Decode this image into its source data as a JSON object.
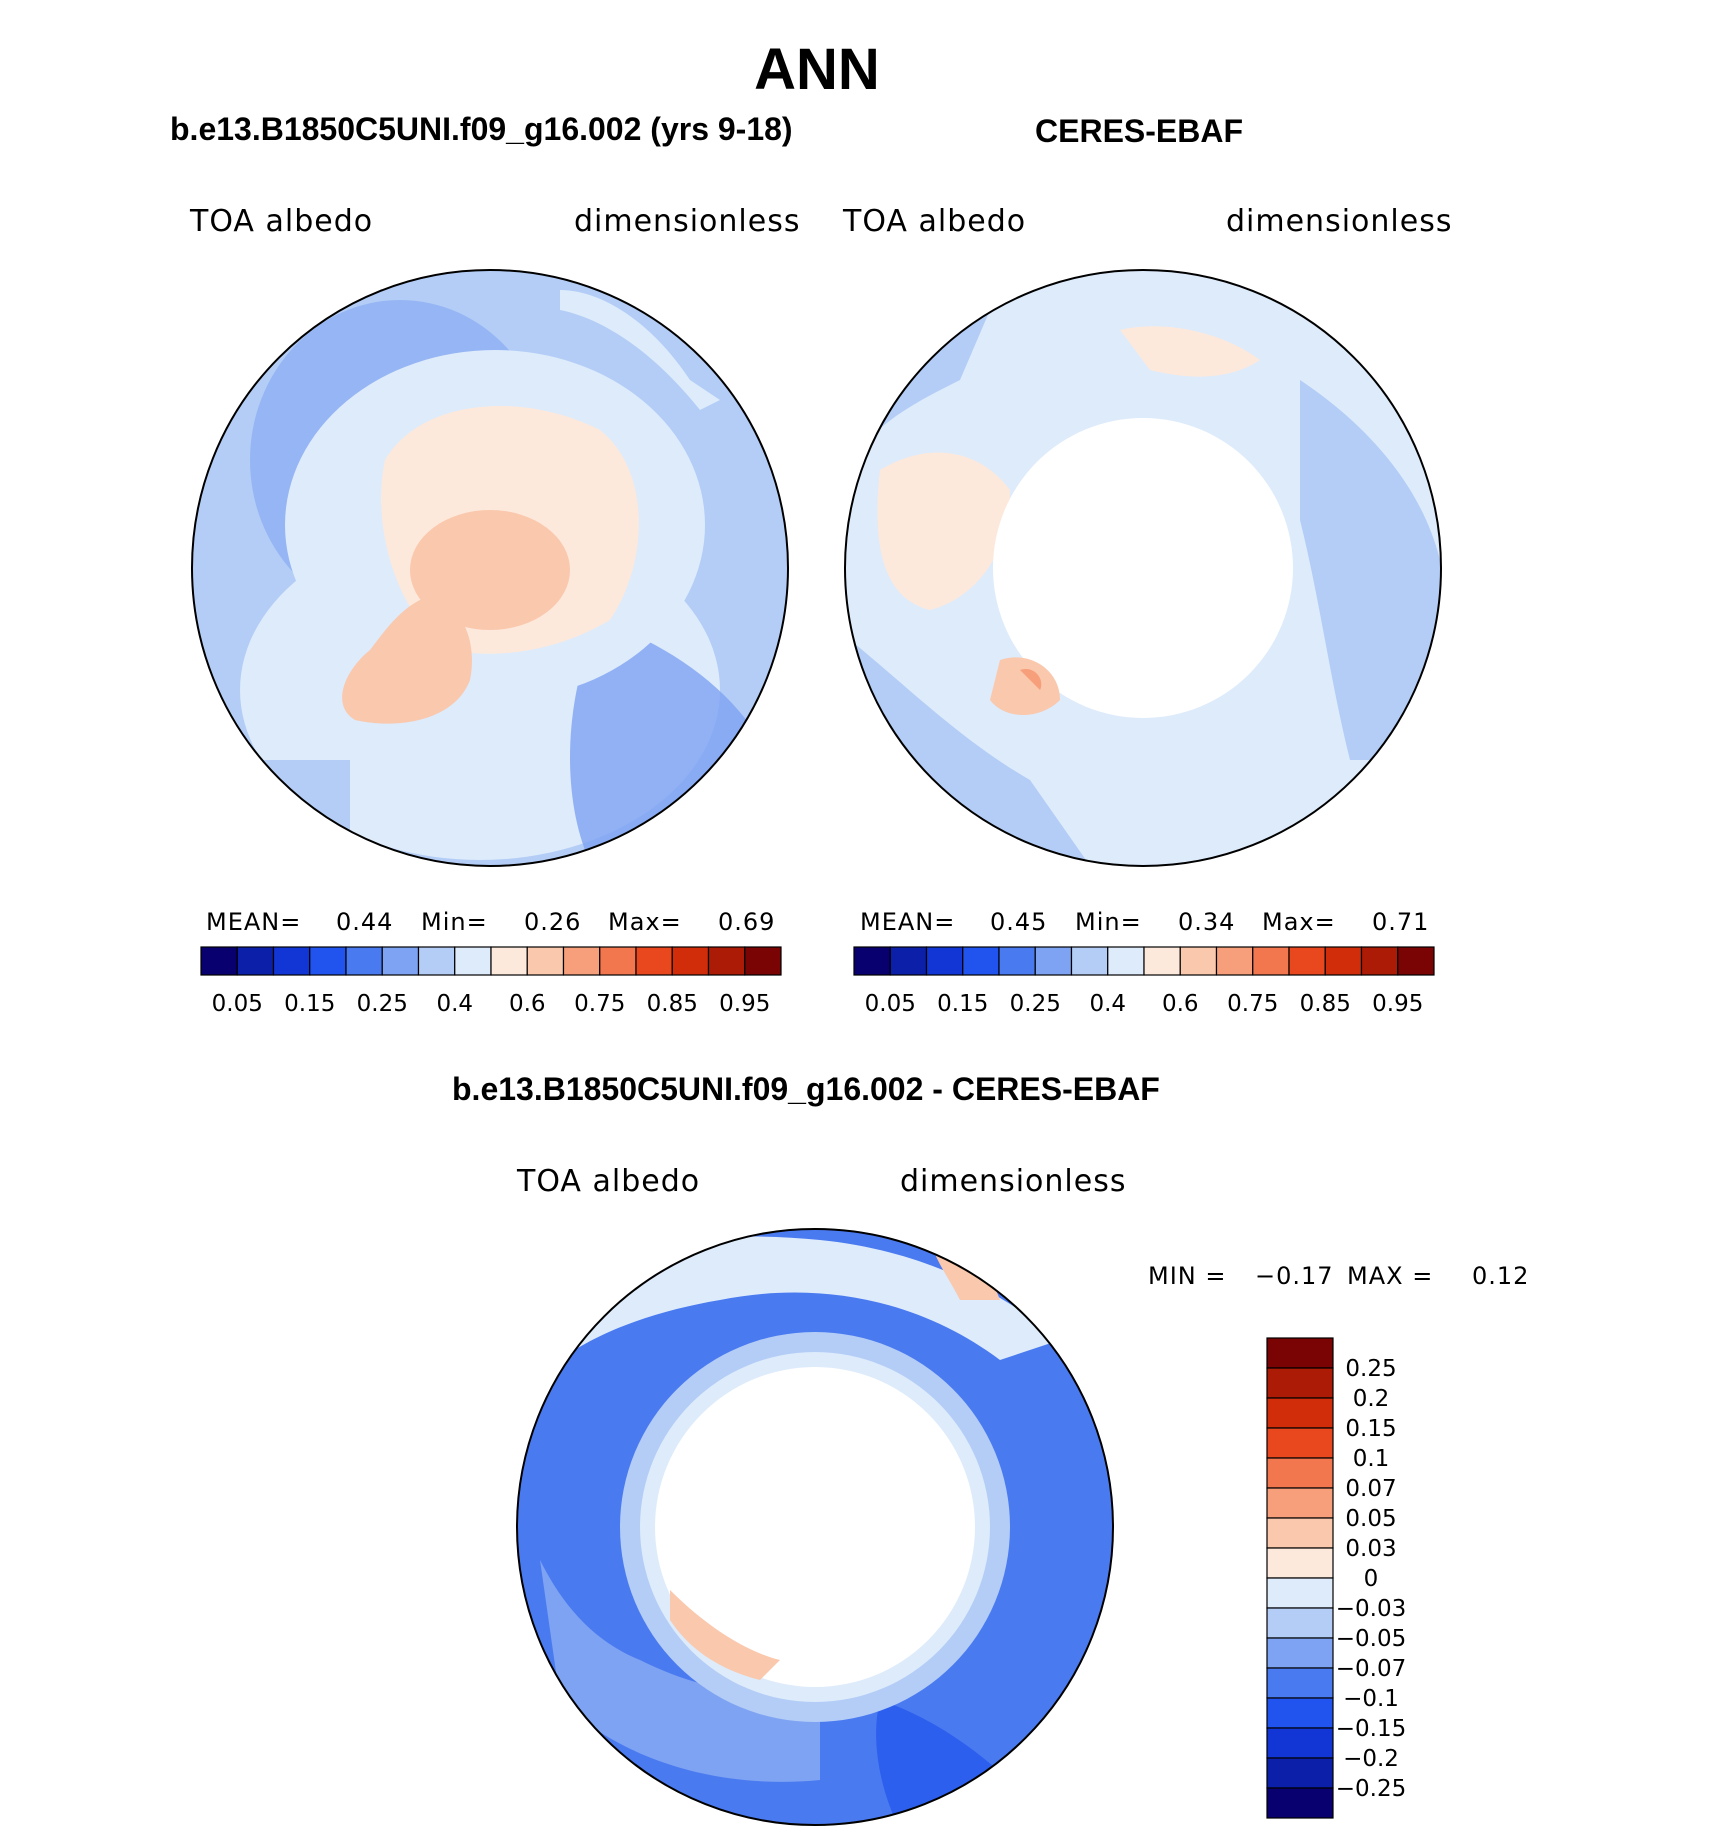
{
  "main_title": "ANN",
  "panels": [
    {
      "title": "b.e13.B1850C5UNI.f09_g16.002 (yrs 9-18)",
      "left_label": "TOA albedo",
      "right_label": "dimensionless",
      "stats": {
        "mean_label": "MEAN=",
        "mean": "0.44",
        "min_label": "Min=",
        "min": "0.26",
        "max_label": "Max=",
        "max": "0.69"
      }
    },
    {
      "title": "CERES-EBAF",
      "left_label": "TOA albedo",
      "right_label": "dimensionless",
      "stats": {
        "mean_label": "MEAN=",
        "mean": "0.45",
        "min_label": "Min=",
        "min": "0.34",
        "max_label": "Max=",
        "max": "0.71"
      }
    }
  ],
  "diff_panel": {
    "title": "b.e13.B1850C5UNI.f09_g16.002 - CERES-EBAF",
    "left_label": "TOA albedo",
    "right_label": "dimensionless",
    "minmax": {
      "min_label": "MIN =",
      "min": "−0.17",
      "max_label": "MAX =",
      "max": "0.12"
    }
  },
  "chart_data": [
    {
      "type": "heatmap",
      "projection": "polar-stereographic-north",
      "title": "b.e13.B1850C5UNI.f09_g16.002 (yrs 9-18)",
      "variable": "TOA albedo",
      "units": "dimensionless",
      "mean": 0.44,
      "min": 0.26,
      "max": 0.69,
      "colorbar": {
        "orientation": "horizontal",
        "tick_labels": [
          "0.05",
          "0.15",
          "0.25",
          "0.4",
          "0.6",
          "0.75",
          "0.85",
          "0.95"
        ],
        "colors": [
          "#08006e",
          "#0b1fa8",
          "#1236d6",
          "#2154ee",
          "#4a7af0",
          "#7ea3f2",
          "#b3cdf6",
          "#ddebfb",
          "#fde9dc",
          "#fac8ad",
          "#f79f7b",
          "#f2764e",
          "#e9481e",
          "#d12d0b",
          "#ab1b06",
          "#7a0303"
        ]
      },
      "regions": {
        "ocean_midlat": "~0.3",
        "arctic_ocean": "~0.5-0.6",
        "greenland": "~0.6"
      }
    },
    {
      "type": "heatmap",
      "projection": "polar-stereographic-north",
      "title": "CERES-EBAF",
      "variable": "TOA albedo",
      "units": "dimensionless",
      "mean": 0.45,
      "min": 0.34,
      "max": 0.71,
      "colorbar": {
        "orientation": "horizontal",
        "tick_labels": [
          "0.05",
          "0.15",
          "0.25",
          "0.4",
          "0.6",
          "0.75",
          "0.85",
          "0.95"
        ],
        "colors": [
          "#08006e",
          "#0b1fa8",
          "#1236d6",
          "#2154ee",
          "#4a7af0",
          "#7ea3f2",
          "#b3cdf6",
          "#ddebfb",
          "#fde9dc",
          "#fac8ad",
          "#f79f7b",
          "#f2764e",
          "#e9481e",
          "#d12d0b",
          "#ab1b06",
          "#7a0303"
        ]
      },
      "regions": {
        "polar_cap": "missing data"
      }
    },
    {
      "type": "heatmap",
      "projection": "polar-stereographic-north",
      "title": "b.e13.B1850C5UNI.f09_g16.002 - CERES-EBAF",
      "variable": "TOA albedo",
      "units": "dimensionless",
      "min": -0.17,
      "max": 0.12,
      "colorbar": {
        "orientation": "vertical",
        "tick_labels": [
          "0.25",
          "0.2",
          "0.15",
          "0.1",
          "0.07",
          "0.05",
          "0.03",
          "0",
          "−0.03",
          "−0.05",
          "−0.07",
          "−0.1",
          "−0.15",
          "−0.2",
          "−0.25"
        ],
        "colors": [
          "#7a0303",
          "#ab1b06",
          "#d12d0b",
          "#e9481e",
          "#f2764e",
          "#f79f7b",
          "#fac8ad",
          "#fde9dc",
          "#ddebfb",
          "#b3cdf6",
          "#7ea3f2",
          "#4a7af0",
          "#2154ee",
          "#1236d6",
          "#0b1fa8",
          "#08006e"
        ]
      }
    }
  ]
}
